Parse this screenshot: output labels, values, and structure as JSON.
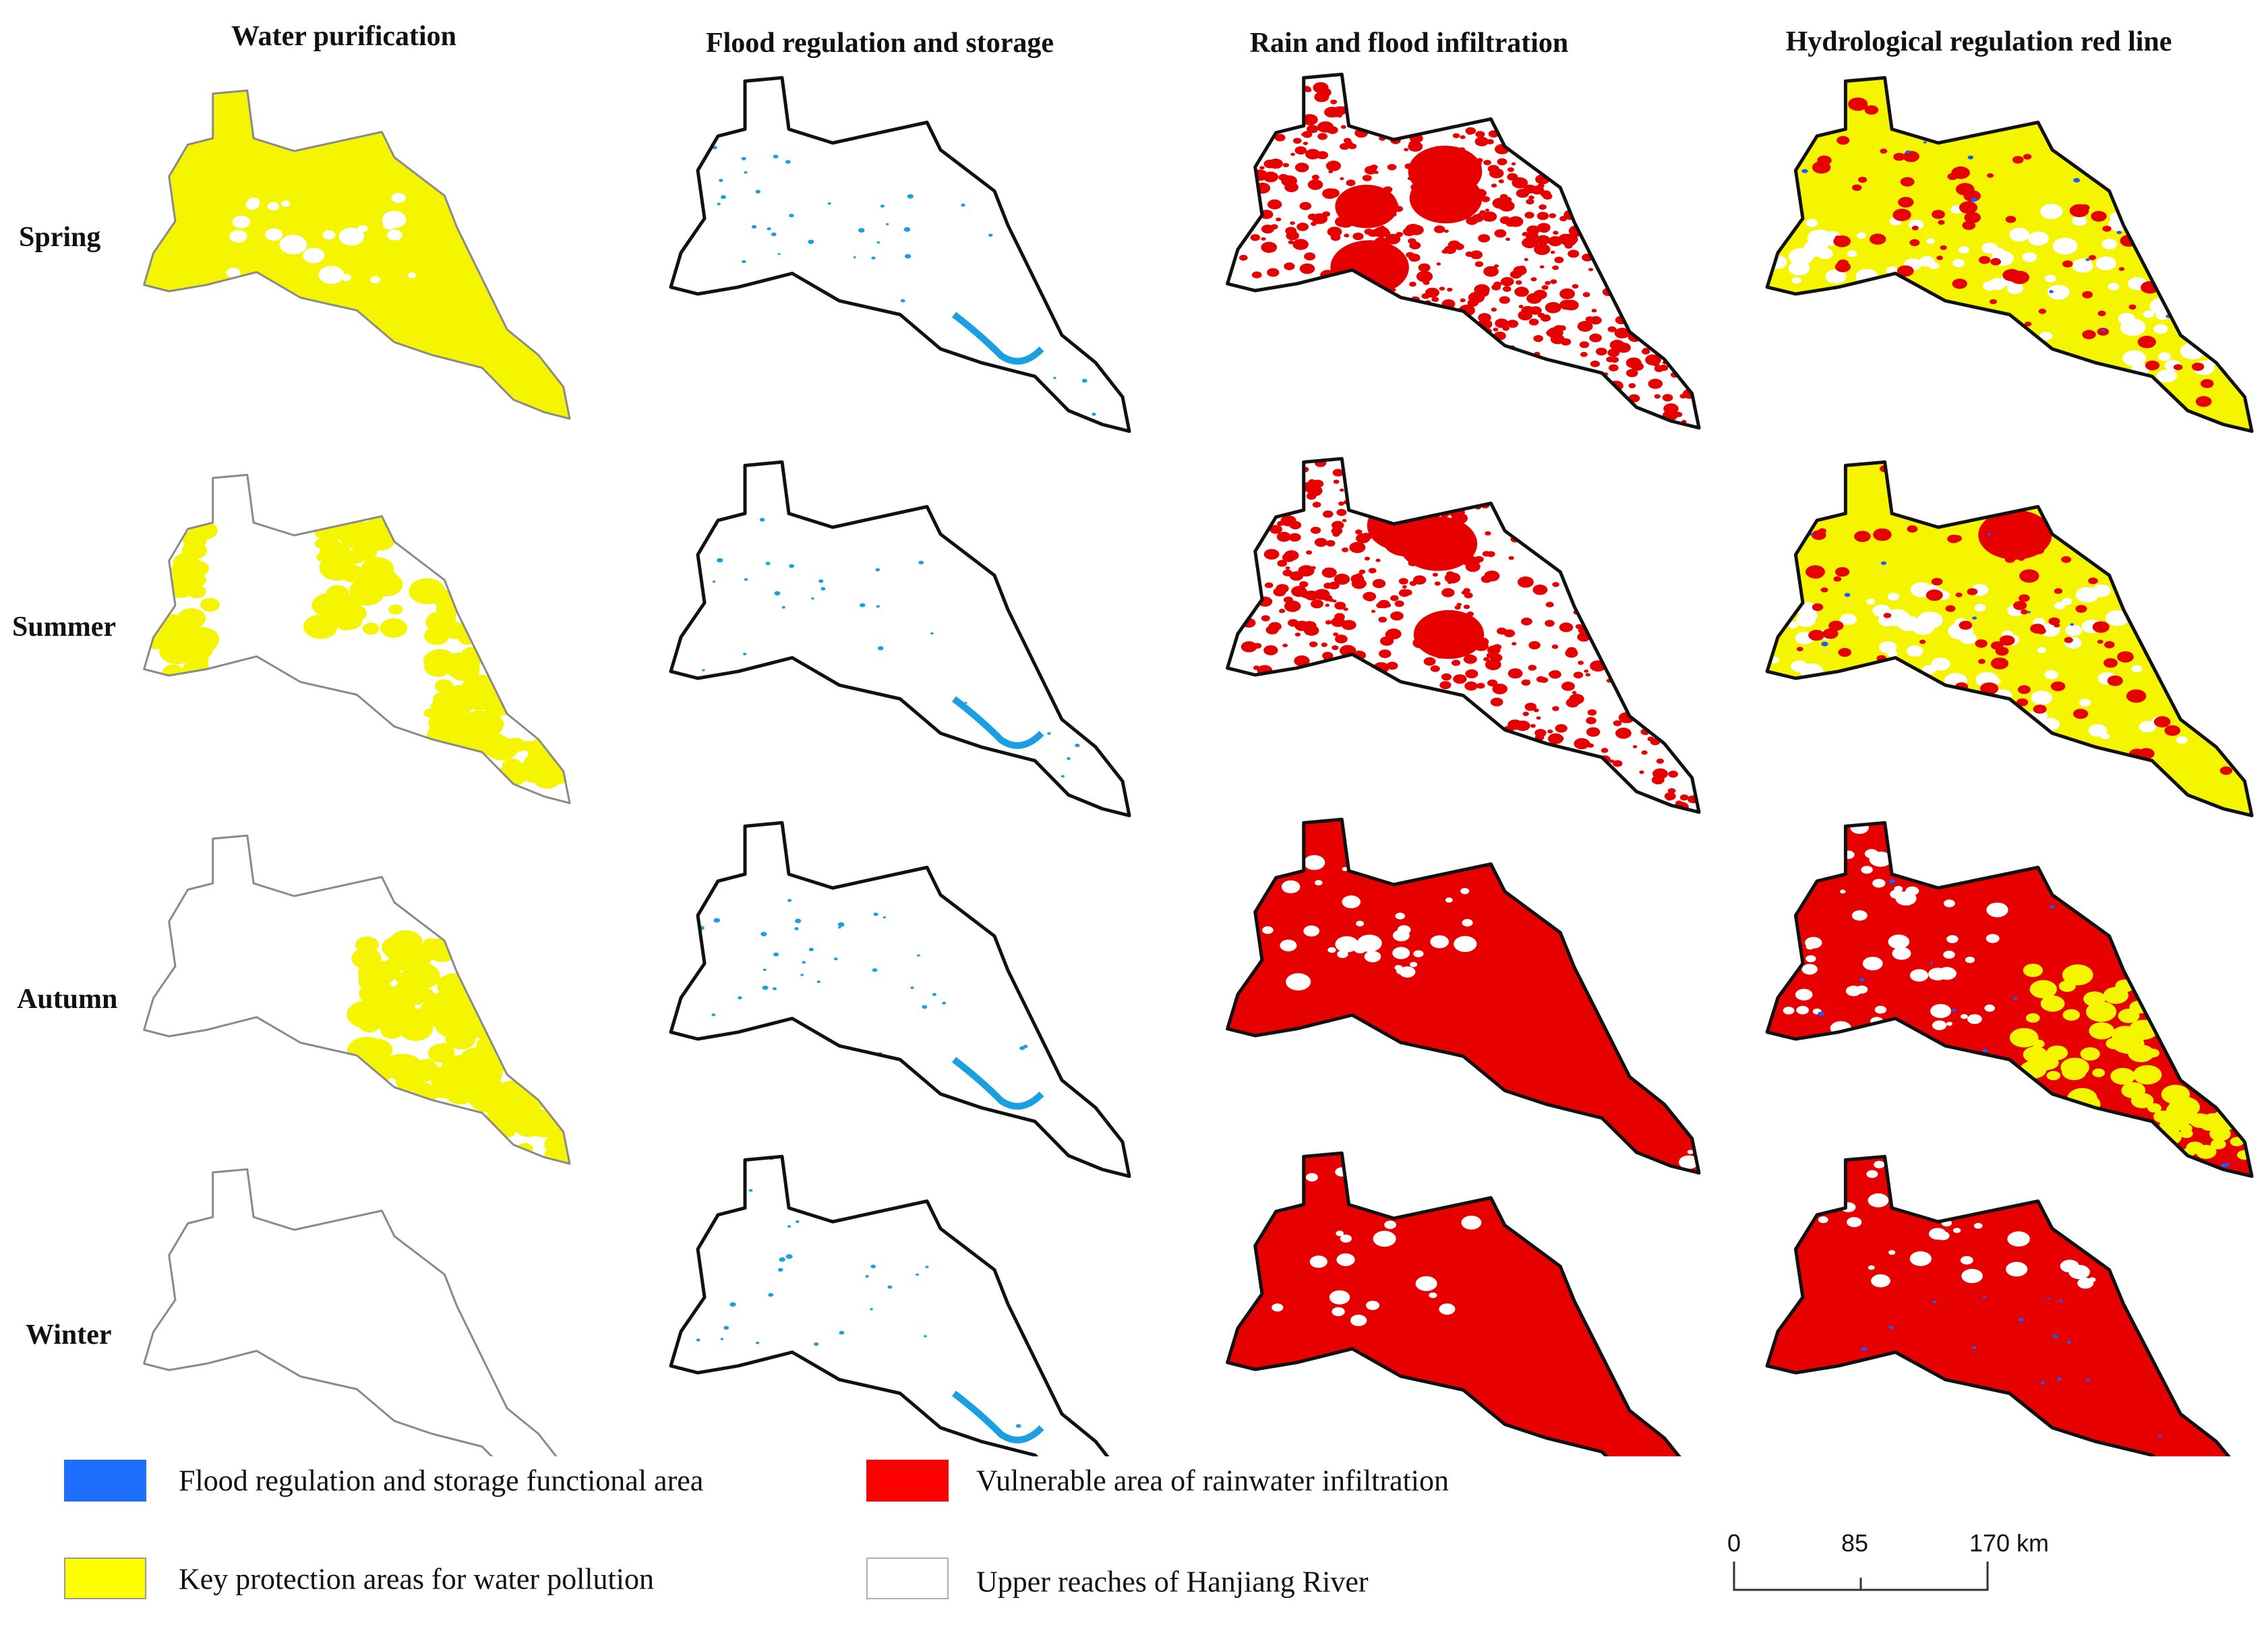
{
  "columns": [
    {
      "id": "water-purification",
      "title": "Water purification"
    },
    {
      "id": "flood-regulation",
      "title": "Flood regulation and storage"
    },
    {
      "id": "rain-infiltration",
      "title": "Rain and flood infiltration"
    },
    {
      "id": "red-line",
      "title": "Hydrological regulation red line"
    }
  ],
  "seasons": [
    "Spring",
    "Summer",
    "Autumn",
    "Winter"
  ],
  "legend": [
    {
      "id": "flood-area",
      "label": "Flood regulation and storage functional area",
      "color": "#1f6fff"
    },
    {
      "id": "vulnerable-area",
      "label": "Vulnerable area of rainwater infiltration",
      "color": "#ff0000"
    },
    {
      "id": "pollution-area",
      "label": "Key protection areas for water pollution",
      "color": "#ffff00"
    },
    {
      "id": "upper-reaches",
      "label": "Upper reaches of Hanjiang River",
      "color": "#ffffff"
    }
  ],
  "scale_bar": {
    "ticks": [
      "0",
      "85",
      "170 km"
    ]
  },
  "colors": {
    "yellow": "#f5f500",
    "red": "#e60000",
    "blue": "#1aa0e0",
    "darkblue": "#1a5cff",
    "outline": "#111111",
    "grey": "#8a8a8a"
  }
}
